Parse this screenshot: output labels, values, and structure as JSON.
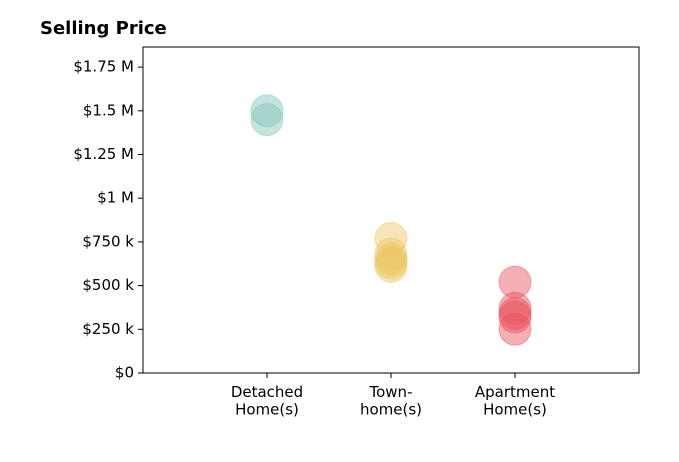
{
  "chart_data": {
    "type": "strip",
    "title": "Selling Price",
    "categories": [
      "Detached\nHome(s)",
      "Town-\nhome(s)",
      "Apartment\nHome(s)"
    ],
    "values": [
      [
        1500000,
        1450000
      ],
      [
        770000,
        680000,
        650000,
        630000,
        610000
      ],
      [
        520000,
        370000,
        340000,
        320000,
        250000
      ]
    ],
    "colors": [
      "#7ec4b8",
      "#ebc55f",
      "#e8505b"
    ],
    "opacity": 0.45,
    "ylim": [
      0,
      1865000
    ],
    "yticks": [
      {
        "value": 0,
        "label": "$0"
      },
      {
        "value": 250000,
        "label": "$250 k"
      },
      {
        "value": 500000,
        "label": "$500 k"
      },
      {
        "value": 750000,
        "label": "$750 k"
      },
      {
        "value": 1000000,
        "label": "$1 M"
      },
      {
        "value": 1250000,
        "label": "$1.25 M"
      },
      {
        "value": 1500000,
        "label": "$1.5 M"
      },
      {
        "value": 1750000,
        "label": "$1.75 M"
      }
    ]
  }
}
